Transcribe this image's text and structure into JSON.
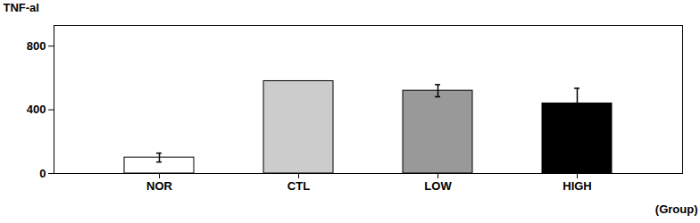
{
  "chart_data": {
    "type": "bar",
    "categories": [
      "NOR",
      "CTL",
      "LOW",
      "HIGH"
    ],
    "values": [
      100,
      580,
      520,
      440
    ],
    "errors": [
      28,
      0,
      38,
      95
    ],
    "colors": [
      "white",
      "#cccccc",
      "#999999",
      "black"
    ],
    "ylabel": "TNF-al",
    "xlabel": "(Group)",
    "ylim": [
      0,
      930
    ],
    "yticks": [
      0,
      400,
      800
    ]
  }
}
